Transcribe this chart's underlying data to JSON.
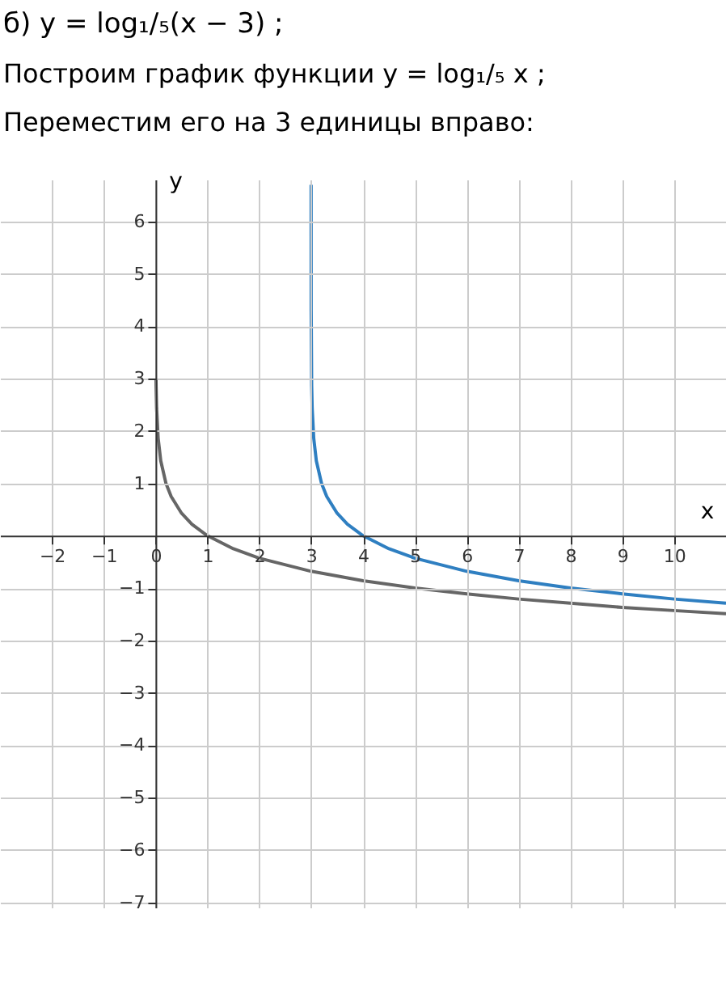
{
  "chart_data": {
    "type": "line",
    "title": "б) y = log₁/₅(x − 3) ;",
    "subtitle": [
      "Построим график функции y = log₁/₅ x ;",
      "Переместим его на 3 единицы вправо:"
    ],
    "xlabel": "x",
    "ylabel": "y",
    "xlim": [
      -3,
      11
    ],
    "ylim": [
      -7.1,
      6.8
    ],
    "xticks": [
      -2,
      -1,
      0,
      1,
      2,
      3,
      4,
      5,
      6,
      7,
      8,
      9,
      10
    ],
    "yticks": [
      -7,
      -6,
      -5,
      -4,
      -3,
      -2,
      -1,
      1,
      2,
      3,
      4,
      5,
      6
    ],
    "grid": true,
    "line_style": "solid",
    "series": [
      {
        "color": "#666666",
        "x": [
          0.008,
          0.01,
          0.02,
          0.05,
          0.1,
          0.2,
          0.3,
          0.5,
          0.7,
          1,
          1.5,
          2,
          3,
          4,
          5,
          6,
          7,
          8,
          9,
          10,
          11
        ],
        "values": [
          3.0,
          2.86,
          2.43,
          1.86,
          1.43,
          1,
          0.75,
          0.43,
          0.22,
          0,
          -0.25,
          -0.43,
          -0.68,
          -0.86,
          -1,
          -1.11,
          -1.21,
          -1.29,
          -1.37,
          -1.43,
          -1.49
        ]
      },
      {
        "color": "#2f7fc1",
        "x": [
          3.00002,
          3.0001,
          3.001,
          3.01,
          3.02,
          3.05,
          3.1,
          3.2,
          3.3,
          3.5,
          3.7,
          4,
          4.5,
          5,
          6,
          7,
          8,
          9,
          10,
          11
        ],
        "values": [
          6.7,
          5.72,
          4.29,
          2.86,
          2.43,
          1.86,
          1.43,
          1,
          0.75,
          0.43,
          0.22,
          0,
          -0.25,
          -0.43,
          -0.68,
          -0.86,
          -1,
          -1.11,
          -1.21,
          -1.29
        ]
      }
    ]
  }
}
